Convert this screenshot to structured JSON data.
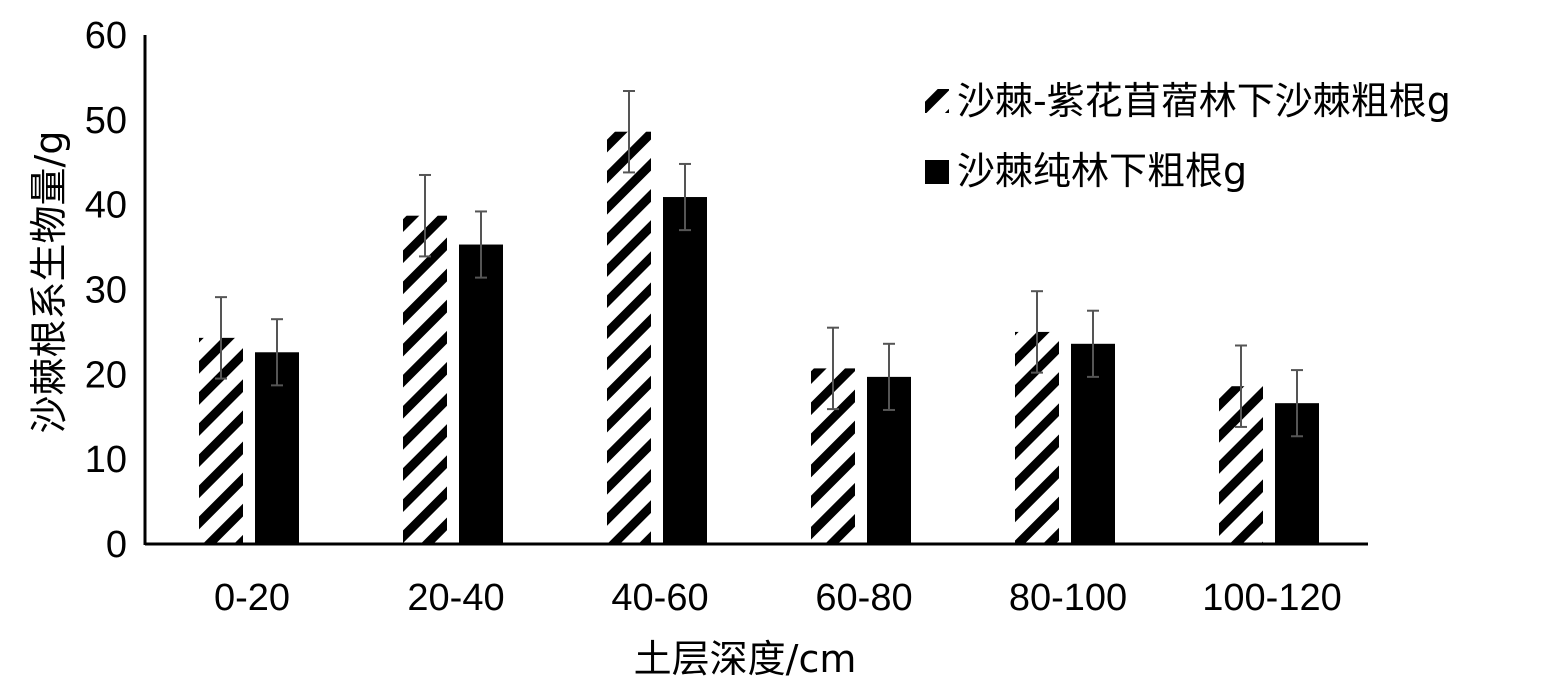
{
  "chart_data": {
    "type": "bar",
    "title": "",
    "xlabel": "土层深度/cm",
    "ylabel": "沙棘根系生物量/g",
    "ylim": [
      0,
      60
    ],
    "yticks": [
      "0",
      "10",
      "20",
      "30",
      "40",
      "50",
      "60"
    ],
    "categories": [
      "0-20",
      "20-40",
      "40-60",
      "60-80",
      "80-100",
      "100-120"
    ],
    "grid": false,
    "legend_position": "top-right",
    "series": [
      {
        "name": "沙棘-紫花苜蓿林下沙棘粗根g",
        "pattern": "diagonal-hatch",
        "color": "#000000",
        "values": [
          24.3,
          38.7,
          48.6,
          20.7,
          25.0,
          18.6
        ],
        "errors": [
          4.8,
          4.8,
          4.8,
          4.8,
          4.8,
          4.8
        ]
      },
      {
        "name": "沙棘纯林下粗根g",
        "pattern": "solid",
        "color": "#000000",
        "values": [
          22.6,
          35.3,
          40.9,
          19.7,
          23.6,
          16.6
        ],
        "errors": [
          3.9,
          3.9,
          3.9,
          3.9,
          3.9,
          3.9
        ]
      }
    ]
  }
}
